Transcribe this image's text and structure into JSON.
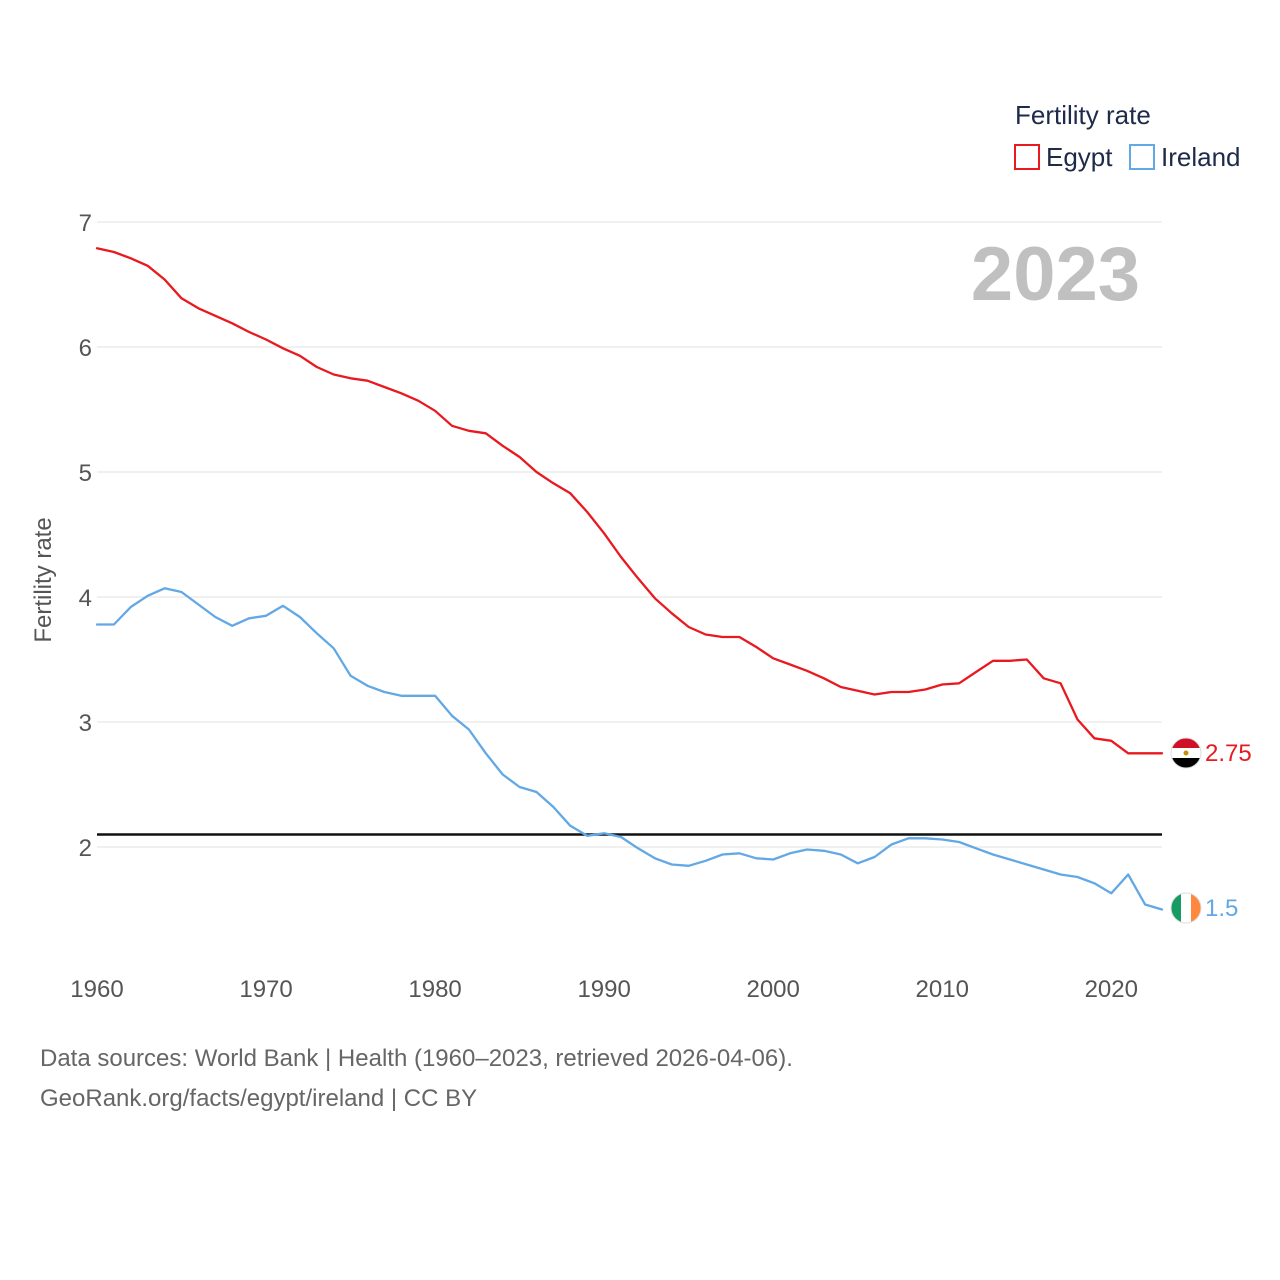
{
  "colors": {
    "egypt": "#e8191f",
    "ireland": "#62a8e5",
    "grid": "#e6e6e6",
    "reference_line": "#111111"
  },
  "chart_data": {
    "type": "line",
    "ylabel": "Fertility rate",
    "legend_title": "Fertility rate",
    "legend_position": "top-right",
    "year_label": "2023",
    "xlim": [
      1960,
      2023
    ],
    "ylim": [
      1.1,
      7.2
    ],
    "x_ticks": [
      1960,
      1970,
      1980,
      1990,
      2000,
      2010,
      2020
    ],
    "y_ticks": [
      2,
      3,
      4,
      5,
      6,
      7
    ],
    "reference_line_value": 2.1,
    "x": [
      1960,
      1961,
      1962,
      1963,
      1964,
      1965,
      1966,
      1967,
      1968,
      1969,
      1970,
      1971,
      1972,
      1973,
      1974,
      1975,
      1976,
      1977,
      1978,
      1979,
      1980,
      1981,
      1982,
      1983,
      1984,
      1985,
      1986,
      1987,
      1988,
      1989,
      1990,
      1991,
      1992,
      1993,
      1994,
      1995,
      1996,
      1997,
      1998,
      1999,
      2000,
      2001,
      2002,
      2003,
      2004,
      2005,
      2006,
      2007,
      2008,
      2009,
      2010,
      2011,
      2012,
      2013,
      2014,
      2015,
      2016,
      2017,
      2018,
      2019,
      2020,
      2021,
      2022,
      2023
    ],
    "series": [
      {
        "name": "Egypt",
        "color_key": "egypt",
        "end_label": "2.75",
        "values": [
          6.79,
          6.76,
          6.71,
          6.65,
          6.54,
          6.39,
          6.31,
          6.25,
          6.19,
          6.12,
          6.06,
          5.99,
          5.93,
          5.84,
          5.78,
          5.75,
          5.73,
          5.68,
          5.63,
          5.57,
          5.49,
          5.37,
          5.33,
          5.31,
          5.21,
          5.12,
          5.0,
          4.91,
          4.83,
          4.68,
          4.51,
          4.32,
          4.15,
          3.99,
          3.87,
          3.76,
          3.7,
          3.68,
          3.68,
          3.6,
          3.51,
          3.46,
          3.41,
          3.35,
          3.28,
          3.25,
          3.22,
          3.24,
          3.24,
          3.26,
          3.3,
          3.31,
          3.4,
          3.49,
          3.49,
          3.5,
          3.35,
          3.31,
          3.02,
          2.87,
          2.85,
          2.75,
          2.75,
          2.75
        ]
      },
      {
        "name": "Ireland",
        "color_key": "ireland",
        "end_label": "1.5",
        "values": [
          3.78,
          3.78,
          3.92,
          4.01,
          4.07,
          4.04,
          3.94,
          3.84,
          3.77,
          3.83,
          3.85,
          3.93,
          3.84,
          3.71,
          3.59,
          3.37,
          3.29,
          3.24,
          3.21,
          3.21,
          3.21,
          3.05,
          2.94,
          2.75,
          2.58,
          2.48,
          2.44,
          2.32,
          2.17,
          2.09,
          2.11,
          2.08,
          1.99,
          1.91,
          1.86,
          1.85,
          1.89,
          1.94,
          1.95,
          1.91,
          1.9,
          1.95,
          1.98,
          1.97,
          1.94,
          1.87,
          1.92,
          2.02,
          2.07,
          2.07,
          2.06,
          2.04,
          1.99,
          1.94,
          1.9,
          1.86,
          1.82,
          1.78,
          1.76,
          1.71,
          1.63,
          1.78,
          1.54,
          1.5
        ]
      }
    ]
  },
  "footer": {
    "line1": "Data sources: World Bank | Health (1960–2023, retrieved 2026-04-06).",
    "line2": "GeoRank.org/facts/egypt/ireland | CC BY"
  }
}
